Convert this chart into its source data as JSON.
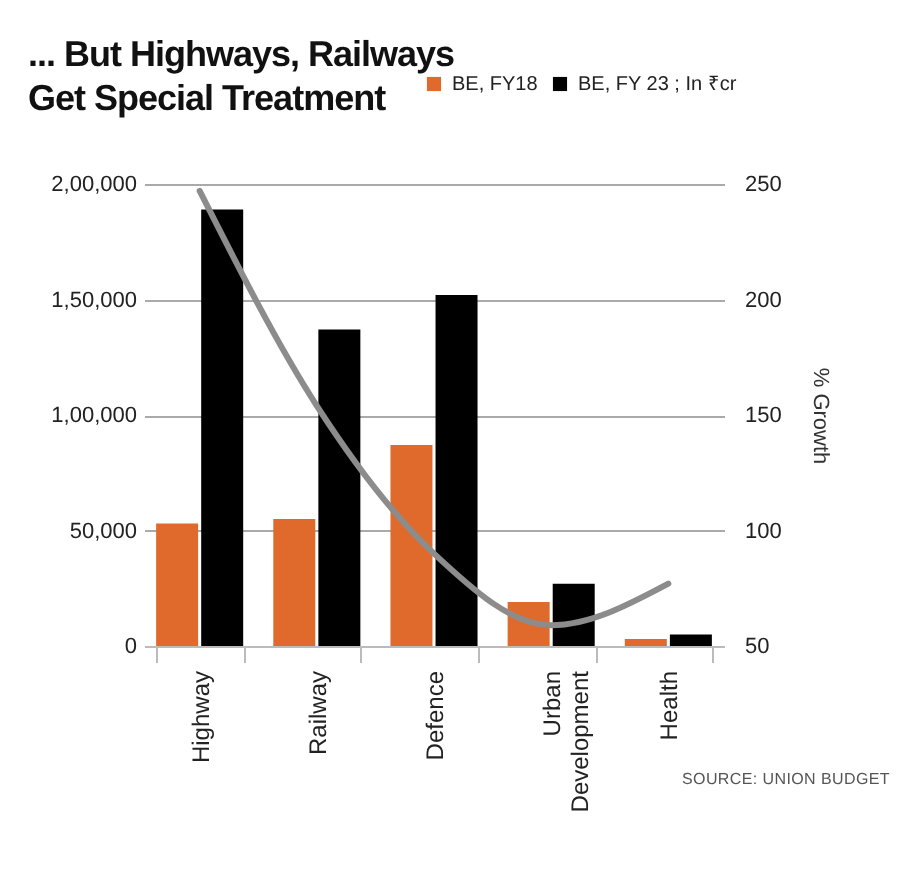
{
  "chart_data": {
    "type": "bar",
    "title": "... But Highways, Railways Get Special Treatment",
    "categories": [
      "Highway",
      "Railway",
      "Defence",
      "Urban Development",
      "Health"
    ],
    "series": [
      {
        "name": "BE, FY18",
        "color": "#e06a2c",
        "values": [
          53000,
          55000,
          87000,
          19000,
          3000
        ]
      },
      {
        "name": "BE, FY 23 ; In ₹cr",
        "color": "#000000",
        "values": [
          189000,
          137000,
          152000,
          27000,
          5000
        ]
      },
      {
        "type": "line",
        "axis": "y2",
        "color": "#8c8c8c",
        "values": [
          247,
          154,
          90,
          59,
          77
        ]
      }
    ],
    "ylim": [
      0,
      200000
    ],
    "yticks": [
      {
        "value": 0,
        "label": "0"
      },
      {
        "value": 50000,
        "label": "50,000"
      },
      {
        "value": 100000,
        "label": "1,00,000"
      },
      {
        "value": 150000,
        "label": "1,50,000"
      },
      {
        "value": 200000,
        "label": "2,00,000"
      }
    ],
    "y2lim": [
      50,
      250
    ],
    "y2ticks": [
      50,
      100,
      150,
      200,
      250
    ],
    "y2label": "% Growth",
    "grid": "y",
    "legend": "top right",
    "annotations": [
      "SOURCE: UNION BUDGET"
    ]
  }
}
